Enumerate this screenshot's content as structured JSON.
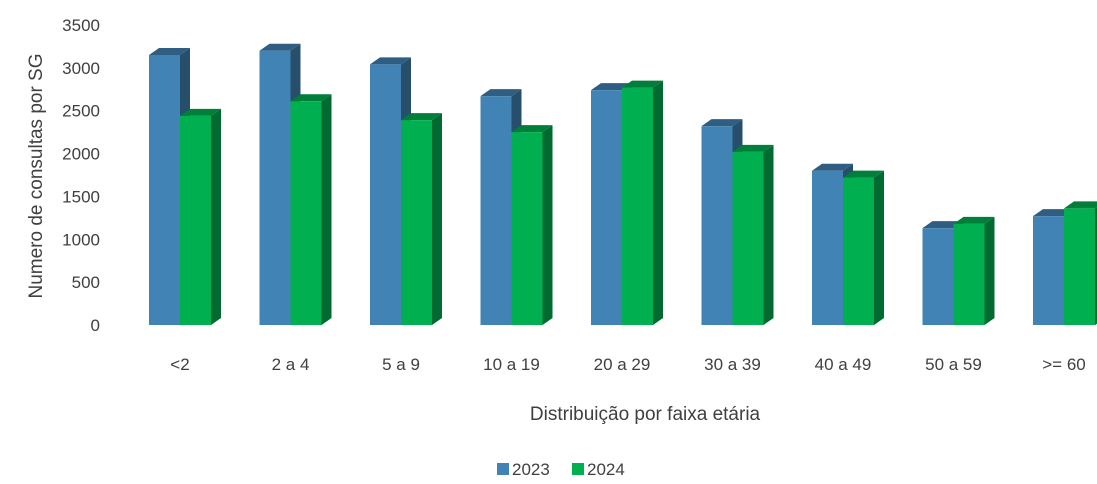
{
  "chart_data": {
    "type": "bar",
    "variant": "3d-clustered",
    "title": "",
    "xlabel": "Distribuição por faixa etária",
    "ylabel": "Numero de consultas por SG",
    "categories": [
      "<2",
      "2 a 4",
      "5 a 9",
      "10 a 19",
      "20 a 29",
      "30 a 39",
      "40 a 49",
      "50 a 59",
      ">= 60"
    ],
    "series": [
      {
        "name": "2023",
        "color": "#4183B4",
        "values": [
          3150,
          3200,
          3040,
          2670,
          2740,
          2320,
          1800,
          1130,
          1270
        ]
      },
      {
        "name": "2024",
        "color": "#00B050",
        "values": [
          2440,
          2610,
          2390,
          2250,
          2770,
          2020,
          1720,
          1180,
          1360
        ]
      }
    ],
    "ylim": [
      0,
      3500
    ],
    "yticks": [
      0,
      500,
      1000,
      1500,
      2000,
      2500,
      3000,
      3500
    ],
    "grid": false,
    "legend_position": "bottom"
  }
}
